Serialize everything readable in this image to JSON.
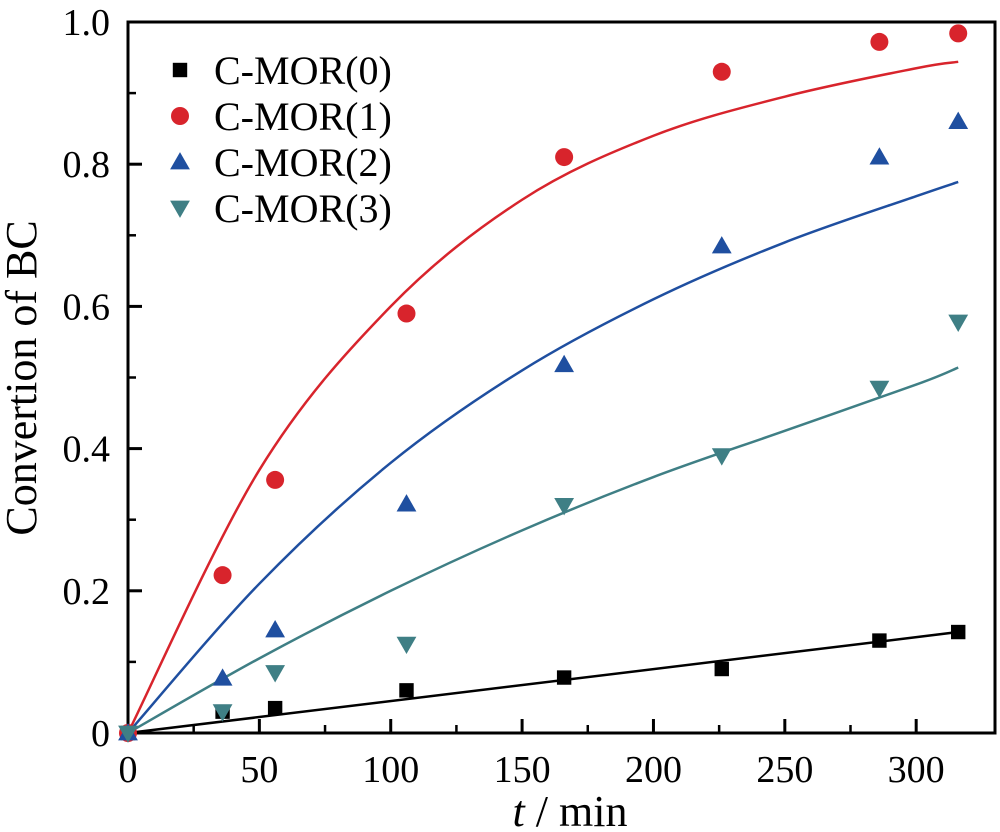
{
  "chart_data": {
    "type": "scatter",
    "xlabel_var": "t",
    "xlabel_unit": " / min",
    "ylabel": "Convertion of BC",
    "xlim": [
      0,
      330
    ],
    "ylim": [
      0,
      1.0
    ],
    "x_ticks": [
      0,
      50,
      100,
      150,
      200,
      250,
      300
    ],
    "y_ticks": [
      0,
      0.2,
      0.4,
      0.6,
      0.8,
      1.0
    ],
    "x_tick_labels": [
      "0",
      "50",
      "100",
      "150",
      "200",
      "250",
      "300"
    ],
    "y_tick_labels": [
      "0",
      "0.2",
      "0.4",
      "0.6",
      "0.8",
      "1.0"
    ],
    "legend_position": "top-left",
    "grid": false,
    "series": [
      {
        "name": "C-MOR(0)",
        "marker": "square",
        "color": "#000000",
        "x": [
          0,
          36,
          56,
          106,
          166,
          226,
          286,
          316
        ],
        "y": [
          0,
          0.03,
          0.035,
          0.06,
          0.078,
          0.09,
          0.13,
          0.142
        ],
        "fit": {
          "x": [
            0,
            316
          ],
          "y": [
            0,
            0.142
          ]
        }
      },
      {
        "name": "C-MOR(1)",
        "marker": "circle",
        "color": "#d8242c",
        "x": [
          0,
          36,
          56,
          106,
          166,
          226,
          286,
          316
        ],
        "y": [
          0,
          0.222,
          0.356,
          0.59,
          0.81,
          0.93,
          0.972,
          0.984
        ],
        "fit": {
          "x": [
            0,
            50,
            100,
            150,
            200,
            250,
            300,
            316
          ],
          "y": [
            0,
            0.37,
            0.6,
            0.75,
            0.84,
            0.895,
            0.935,
            0.944
          ]
        }
      },
      {
        "name": "C-MOR(2)",
        "marker": "triangle-up",
        "color": "#1f4fa0",
        "x": [
          0,
          36,
          56,
          106,
          166,
          226,
          286,
          316
        ],
        "y": [
          0,
          0.077,
          0.145,
          0.322,
          0.518,
          0.685,
          0.81,
          0.86
        ],
        "fit": {
          "x": [
            0,
            50,
            100,
            150,
            200,
            250,
            300,
            316
          ],
          "y": [
            0,
            0.21,
            0.38,
            0.51,
            0.61,
            0.69,
            0.755,
            0.775
          ]
        }
      },
      {
        "name": "C-MOR(3)",
        "marker": "triangle-down",
        "color": "#3f7f85",
        "x": [
          0,
          36,
          56,
          106,
          166,
          226,
          286,
          316
        ],
        "y": [
          0,
          0.03,
          0.085,
          0.125,
          0.32,
          0.39,
          0.485,
          0.578
        ],
        "fit": {
          "x": [
            0,
            50,
            100,
            150,
            200,
            250,
            300,
            316
          ],
          "y": [
            0,
            0.105,
            0.2,
            0.285,
            0.36,
            0.425,
            0.49,
            0.514
          ]
        }
      }
    ]
  }
}
